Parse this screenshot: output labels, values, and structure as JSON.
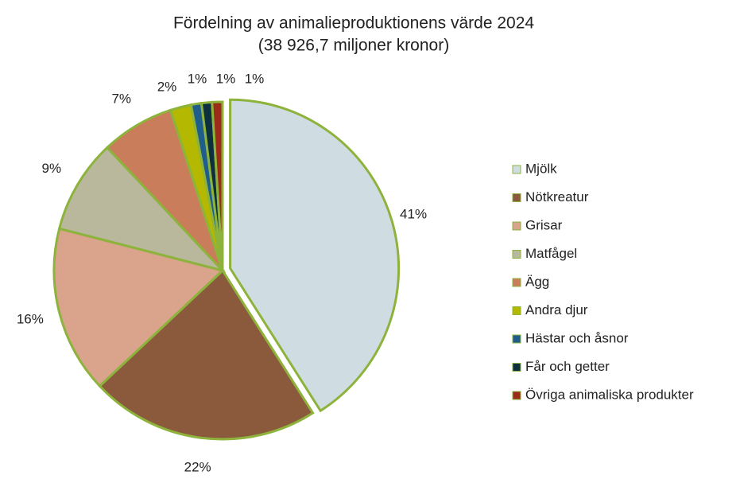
{
  "chart_data": {
    "type": "pie",
    "title": "Fördelning av animalieproduktionens värde 2024",
    "subtitle": "(38 926,7 miljoner kronor)",
    "categories": [
      "Mjölk",
      "Nötkreatur",
      "Grisar",
      "Matfågel",
      "Ägg",
      "Andra djur",
      "Hästar och åsnor",
      "Får och getter",
      "Övriga animaliska produkter"
    ],
    "values": [
      41,
      22,
      16,
      9,
      7,
      2,
      1,
      1,
      1
    ],
    "value_labels": [
      "41%",
      "22%",
      "16%",
      "9%",
      "7%",
      "2%",
      "1%",
      "1%",
      "1%"
    ],
    "colors": [
      "#cfdde3",
      "#8b5a3c",
      "#d9a38c",
      "#b9b89c",
      "#c97d5a",
      "#b5b800",
      "#1f5e8c",
      "#0e2f3e",
      "#9b2c1a"
    ],
    "legend": "right"
  }
}
